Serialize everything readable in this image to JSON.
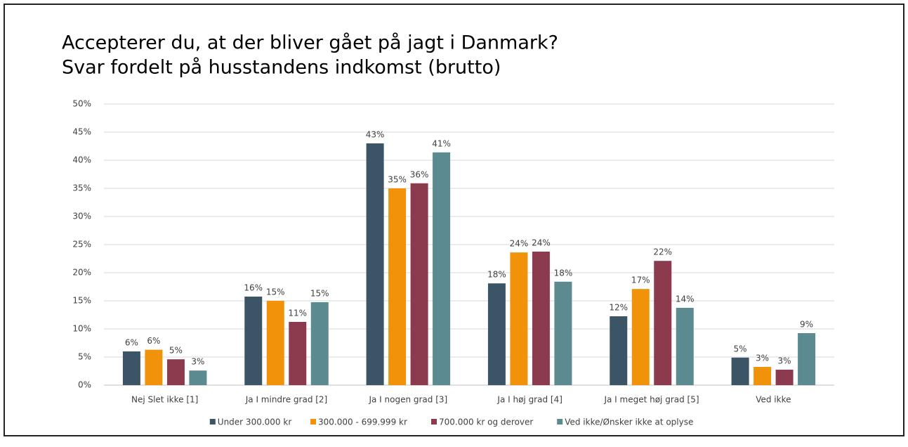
{
  "chart_data": {
    "type": "bar",
    "title": "Accepterer du, at der bliver gået på jagt i Danmark?",
    "subtitle": "Svar fordelt på husstandens indkomst (brutto)",
    "categories": [
      "Nej Slet ikke [1]",
      "Ja I mindre grad [2]",
      "Ja I nogen grad [3]",
      "Ja I høj grad [4]",
      "Ja I meget høj grad [5]",
      "Ved ikke"
    ],
    "series": [
      {
        "name": "Under 300.000 kr",
        "color": "#3b5566",
        "values": [
          6.0,
          15.75,
          43,
          18.1,
          12.25,
          4.9
        ],
        "value_labels": [
          "6%",
          "16%",
          "43%",
          "18%",
          "12%",
          "5%"
        ]
      },
      {
        "name": "300.000 - 699.999 kr",
        "color": "#f0920a",
        "values": [
          6.3,
          15.0,
          35,
          23.6,
          17.1,
          3.25
        ],
        "value_labels": [
          "6%",
          "15%",
          "35%",
          "24%",
          "17%",
          "3%"
        ]
      },
      {
        "name": "700.000 kr og derover",
        "color": "#8c3a4e",
        "values": [
          4.6,
          11.25,
          35.9,
          23.75,
          22.1,
          2.75
        ],
        "value_labels": [
          "5%",
          "11%",
          "36%",
          "24%",
          "22%",
          "3%"
        ]
      },
      {
        "name": "Ved ikke/Ønsker ikke at oplyse",
        "color": "#5b8a90",
        "values": [
          2.6,
          14.75,
          41.4,
          18.4,
          13.75,
          9.25
        ],
        "value_labels": [
          "3%",
          "15%",
          "41%",
          "18%",
          "14%",
          "9%"
        ]
      }
    ],
    "ylim": [
      0,
      50
    ],
    "yticks": [
      {
        "value": 0,
        "label": "0%"
      },
      {
        "value": 5,
        "label": "5%"
      },
      {
        "value": 10,
        "label": "10%"
      },
      {
        "value": 15,
        "label": "15%"
      },
      {
        "value": 20,
        "label": "20%"
      },
      {
        "value": 25,
        "label": "25%"
      },
      {
        "value": 30,
        "label": "30%"
      },
      {
        "value": 35,
        "label": "35%"
      },
      {
        "value": 40,
        "label": "40%"
      },
      {
        "value": 45,
        "label": "45%"
      },
      {
        "value": 50,
        "label": "50%"
      }
    ],
    "grid": true,
    "legend": "bottom"
  }
}
